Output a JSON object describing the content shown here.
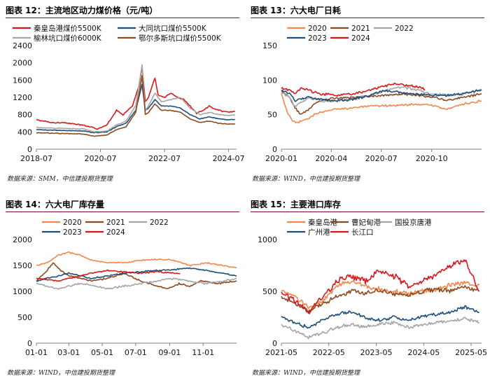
{
  "chart_data": [
    {
      "id": "p1",
      "type": "line",
      "title": "图表 12：主流地区动力煤价格（元/吨）",
      "source": "数据来源：SMM，中信建投期货整理",
      "x_is_time": true,
      "xlim": [
        2018.5,
        2024.75
      ],
      "x_ticks": [
        2018.5,
        2020.5,
        2022.5,
        2024.5
      ],
      "x_tick_labels": [
        "2018-07",
        "2020-07",
        "2022-07",
        "2024-07"
      ],
      "ylim": [
        0,
        2400
      ],
      "y_ticks": [
        0,
        400,
        800,
        1200,
        1600,
        2000,
        2400
      ],
      "y_tick_labels": [
        "0",
        "400",
        "800",
        "1200",
        "1600",
        "2000",
        "2400"
      ],
      "legend_cols": 2,
      "series": [
        {
          "name": "秦皇岛港煤价5500K",
          "color": "#d7191c",
          "volatility": 10,
          "x": [
            2018.5,
            2018.8,
            2019.0,
            2019.3,
            2019.6,
            2019.9,
            2020.2,
            2020.4,
            2020.7,
            2021.0,
            2021.2,
            2021.5,
            2021.7,
            2021.8,
            2021.9,
            2022.0,
            2022.2,
            2022.3,
            2022.5,
            2022.7,
            2022.9,
            2023.1,
            2023.3,
            2023.5,
            2023.7,
            2023.9,
            2024.0,
            2024.3,
            2024.5,
            2024.7
          ],
          "y": [
            680,
            640,
            610,
            620,
            590,
            560,
            520,
            470,
            560,
            900,
            800,
            1000,
            1450,
            1900,
            1100,
            1200,
            1650,
            1250,
            1200,
            1300,
            1200,
            1150,
            1000,
            830,
            900,
            1000,
            950,
            880,
            860,
            880
          ]
        },
        {
          "name": "大同坑口煤价5500K",
          "color": "#1f4e79",
          "volatility": 6,
          "x": [
            2018.5,
            2019.0,
            2019.5,
            2020.0,
            2020.3,
            2020.7,
            2021.0,
            2021.3,
            2021.6,
            2021.8,
            2021.9,
            2022.0,
            2022.2,
            2022.4,
            2022.7,
            2023.0,
            2023.3,
            2023.6,
            2023.9,
            2024.2,
            2024.5,
            2024.7
          ],
          "y": [
            450,
            440,
            430,
            420,
            380,
            400,
            520,
            600,
            900,
            1500,
            900,
            950,
            1150,
            1000,
            1000,
            950,
            800,
            700,
            750,
            700,
            680,
            690
          ]
        },
        {
          "name": "榆林坑口煤价6000K",
          "color": "#a5a5a5",
          "volatility": 8,
          "x": [
            2018.5,
            2019.0,
            2019.5,
            2020.0,
            2020.3,
            2020.7,
            2021.0,
            2021.3,
            2021.6,
            2021.8,
            2021.9,
            2022.0,
            2022.2,
            2022.4,
            2022.7,
            2023.0,
            2023.3,
            2023.6,
            2023.9,
            2024.2,
            2024.5,
            2024.7
          ],
          "y": [
            500,
            490,
            480,
            470,
            400,
            420,
            560,
            650,
            1000,
            1950,
            900,
            1000,
            1300,
            1100,
            1150,
            1200,
            950,
            800,
            850,
            800,
            780,
            800
          ]
        },
        {
          "name": "鄂尔多斯坑口煤价5500K",
          "color": "#8c4a1f",
          "volatility": 6,
          "x": [
            2018.5,
            2019.0,
            2019.5,
            2020.0,
            2020.3,
            2020.7,
            2021.0,
            2021.3,
            2021.6,
            2021.8,
            2021.9,
            2022.0,
            2022.2,
            2022.4,
            2022.7,
            2023.0,
            2023.3,
            2023.6,
            2023.9,
            2024.2,
            2024.5,
            2024.7
          ],
          "y": [
            380,
            370,
            360,
            350,
            300,
            330,
            450,
            520,
            850,
            1700,
            800,
            850,
            1050,
            900,
            900,
            850,
            700,
            620,
            650,
            600,
            580,
            590
          ]
        }
      ]
    },
    {
      "id": "p2",
      "type": "line",
      "title": "图表 13：六大电厂日耗",
      "source": "数据来源：WIND，中信建投期货整理",
      "x_is_time": true,
      "xlim": [
        0,
        365
      ],
      "x_ticks": [
        0,
        91,
        182,
        274
      ],
      "x_tick_labels": [
        "2020-01",
        "2020-04",
        "2020-07",
        "2020-10"
      ],
      "ylim": [
        0,
        150
      ],
      "y_ticks": [
        0,
        50,
        100,
        150
      ],
      "y_tick_labels": [
        "0",
        "50",
        "100",
        "150"
      ],
      "legend_cols": 3,
      "series": [
        {
          "name": "2020",
          "color": "#f4874b",
          "volatility": 1.2,
          "x": [
            0,
            10,
            20,
            30,
            40,
            50,
            60,
            80,
            100,
            130,
            160,
            190,
            220,
            250,
            270,
            300,
            330,
            365
          ],
          "y": [
            80,
            55,
            40,
            38,
            42,
            45,
            50,
            55,
            58,
            60,
            62,
            63,
            64,
            65,
            64,
            58,
            65,
            70
          ]
        },
        {
          "name": "2021",
          "color": "#8c4a1f",
          "volatility": 1.2,
          "x": [
            0,
            15,
            25,
            35,
            45,
            60,
            80,
            100,
            130,
            160,
            190,
            220,
            250,
            280,
            300,
            330,
            365
          ],
          "y": [
            85,
            75,
            60,
            50,
            55,
            65,
            72,
            74,
            75,
            76,
            78,
            80,
            78,
            75,
            70,
            75,
            80
          ]
        },
        {
          "name": "2022",
          "color": "#a5a5a5",
          "volatility": 1.5,
          "x": [
            0,
            15,
            25,
            35,
            50,
            70,
            100,
            130,
            160,
            190,
            220,
            250,
            270,
            300,
            330,
            365
          ],
          "y": [
            82,
            75,
            62,
            68,
            75,
            70,
            70,
            72,
            78,
            85,
            90,
            85,
            80,
            78,
            80,
            85
          ]
        },
        {
          "name": "2023",
          "color": "#1f4e79",
          "volatility": 1.4,
          "x": [
            0,
            15,
            25,
            35,
            50,
            70,
            100,
            130,
            160,
            190,
            220,
            250,
            270,
            300,
            330,
            365
          ],
          "y": [
            85,
            80,
            70,
            72,
            75,
            72,
            70,
            72,
            78,
            85,
            82,
            80,
            78,
            78,
            80,
            86
          ]
        },
        {
          "name": "2024",
          "color": "#d7191c",
          "volatility": 1.4,
          "x": [
            0,
            15,
            25,
            35,
            50,
            70,
            100,
            130,
            160,
            190,
            210,
            230,
            250,
            262
          ],
          "y": [
            88,
            85,
            80,
            88,
            85,
            80,
            78,
            80,
            85,
            92,
            95,
            92,
            90,
            86
          ]
        }
      ]
    },
    {
      "id": "p3",
      "type": "line",
      "title": "图表 14：六大电厂库存量",
      "source": "数据来源：WIND，中信建投期货整理",
      "x_is_time": true,
      "xlim": [
        0,
        365
      ],
      "x_ticks": [
        0,
        59,
        120,
        181,
        243,
        304
      ],
      "x_tick_labels": [
        "01-01",
        "03-01",
        "05-01",
        "07-01",
        "09-01",
        "11-01"
      ],
      "ylim": [
        0,
        2000
      ],
      "y_ticks": [
        0,
        500,
        1000,
        1500,
        2000
      ],
      "y_tick_labels": [
        "0",
        "500",
        "1000",
        "1500",
        "2000"
      ],
      "legend_cols": 3,
      "series": [
        {
          "name": "2020",
          "color": "#f4874b",
          "volatility": 10,
          "x": [
            0,
            20,
            40,
            59,
            80,
            100,
            130,
            160,
            190,
            220,
            250,
            280,
            310,
            340,
            365
          ],
          "y": [
            1500,
            1550,
            1700,
            1750,
            1700,
            1600,
            1550,
            1550,
            1600,
            1620,
            1600,
            1500,
            1550,
            1500,
            1450
          ]
        },
        {
          "name": "2021",
          "color": "#8c4a1f",
          "volatility": 12,
          "x": [
            0,
            15,
            30,
            45,
            59,
            80,
            100,
            130,
            160,
            190,
            220,
            240,
            260,
            280,
            300,
            330,
            365
          ],
          "y": [
            1200,
            1350,
            1550,
            1400,
            1300,
            1250,
            1200,
            1250,
            1350,
            1200,
            1100,
            1050,
            1150,
            1100,
            1200,
            1150,
            1200
          ]
        },
        {
          "name": "2022",
          "color": "#a5a5a5",
          "volatility": 14,
          "x": [
            0,
            20,
            40,
            59,
            80,
            100,
            130,
            160,
            190,
            220,
            250,
            280,
            310,
            340,
            365
          ],
          "y": [
            1150,
            1100,
            1050,
            1100,
            1150,
            1120,
            1050,
            1100,
            1150,
            1200,
            1250,
            1200,
            1150,
            1200,
            1250
          ]
        },
        {
          "name": "2023",
          "color": "#1f4e79",
          "volatility": 10,
          "x": [
            0,
            20,
            40,
            59,
            80,
            100,
            130,
            160,
            190,
            220,
            250,
            280,
            310,
            340,
            365
          ],
          "y": [
            1200,
            1250,
            1300,
            1350,
            1300,
            1250,
            1300,
            1350,
            1380,
            1400,
            1420,
            1450,
            1400,
            1350,
            1300
          ]
        },
        {
          "name": "2024",
          "color": "#d7191c",
          "volatility": 10,
          "x": [
            0,
            20,
            40,
            59,
            80,
            100,
            130,
            160,
            190,
            220,
            250,
            262
          ],
          "y": [
            1250,
            1220,
            1200,
            1250,
            1300,
            1350,
            1400,
            1380,
            1350,
            1380,
            1350,
            1340
          ]
        }
      ]
    },
    {
      "id": "p4",
      "type": "line",
      "title": "图表 15：主要港口库存",
      "source": "数据来源：WIND，中信建投期货整理",
      "x_is_time": true,
      "xlim": [
        2021.33,
        2025.55
      ],
      "x_ticks": [
        2021.33,
        2022.33,
        2023.33,
        2024.33,
        2025.33
      ],
      "x_tick_labels": [
        "2021-05",
        "2022-05",
        "2023-05",
        "2024-05",
        "2025-05"
      ],
      "ylim": [
        0,
        1000
      ],
      "y_ticks": [
        0,
        500,
        1000
      ],
      "y_tick_labels": [
        "0",
        "500",
        "1000"
      ],
      "legend_cols": 3,
      "series": [
        {
          "name": "秦皇岛港",
          "color": "#f4874b",
          "volatility": 18,
          "x": [
            2021.33,
            2021.6,
            2021.9,
            2022.2,
            2022.5,
            2022.8,
            2023.1,
            2023.4,
            2023.7,
            2024.0,
            2024.3,
            2024.6,
            2024.9,
            2025.2,
            2025.5
          ],
          "y": [
            500,
            450,
            350,
            400,
            550,
            600,
            550,
            520,
            500,
            480,
            500,
            520,
            560,
            580,
            560
          ]
        },
        {
          "name": "曹妃甸港",
          "color": "#8c4a1f",
          "volatility": 18,
          "x": [
            2021.33,
            2021.6,
            2021.9,
            2022.2,
            2022.5,
            2022.8,
            2023.1,
            2023.4,
            2023.7,
            2024.0,
            2024.3,
            2024.6,
            2024.9,
            2025.2,
            2025.5
          ],
          "y": [
            450,
            400,
            300,
            380,
            450,
            500,
            480,
            500,
            480,
            460,
            500,
            520,
            500,
            550,
            500
          ]
        },
        {
          "name": "国投京唐港",
          "color": "#a5a5a5",
          "volatility": 14,
          "x": [
            2021.33,
            2021.6,
            2021.9,
            2022.2,
            2022.5,
            2022.8,
            2023.1,
            2023.4,
            2023.7,
            2024.0,
            2024.3,
            2024.6,
            2024.9,
            2025.2,
            2025.5
          ],
          "y": [
            180,
            120,
            60,
            100,
            150,
            180,
            160,
            180,
            200,
            150,
            180,
            200,
            220,
            240,
            200
          ]
        },
        {
          "name": "广州港",
          "color": "#1f4e79",
          "volatility": 12,
          "x": [
            2021.33,
            2021.6,
            2021.9,
            2022.2,
            2022.5,
            2022.8,
            2023.1,
            2023.4,
            2023.7,
            2024.0,
            2024.3,
            2024.6,
            2024.9,
            2025.2,
            2025.5
          ],
          "y": [
            250,
            200,
            150,
            220,
            280,
            300,
            250,
            220,
            250,
            220,
            260,
            280,
            300,
            350,
            300
          ]
        },
        {
          "name": "长江口",
          "color": "#d7191c",
          "volatility": 22,
          "x": [
            2021.33,
            2021.6,
            2021.9,
            2022.2,
            2022.5,
            2022.8,
            2023.1,
            2023.4,
            2023.7,
            2024.0,
            2024.3,
            2024.6,
            2024.9,
            2025.2,
            2025.5
          ],
          "y": [
            480,
            420,
            300,
            450,
            600,
            650,
            600,
            700,
            650,
            550,
            600,
            650,
            750,
            800,
            500
          ]
        }
      ]
    }
  ]
}
